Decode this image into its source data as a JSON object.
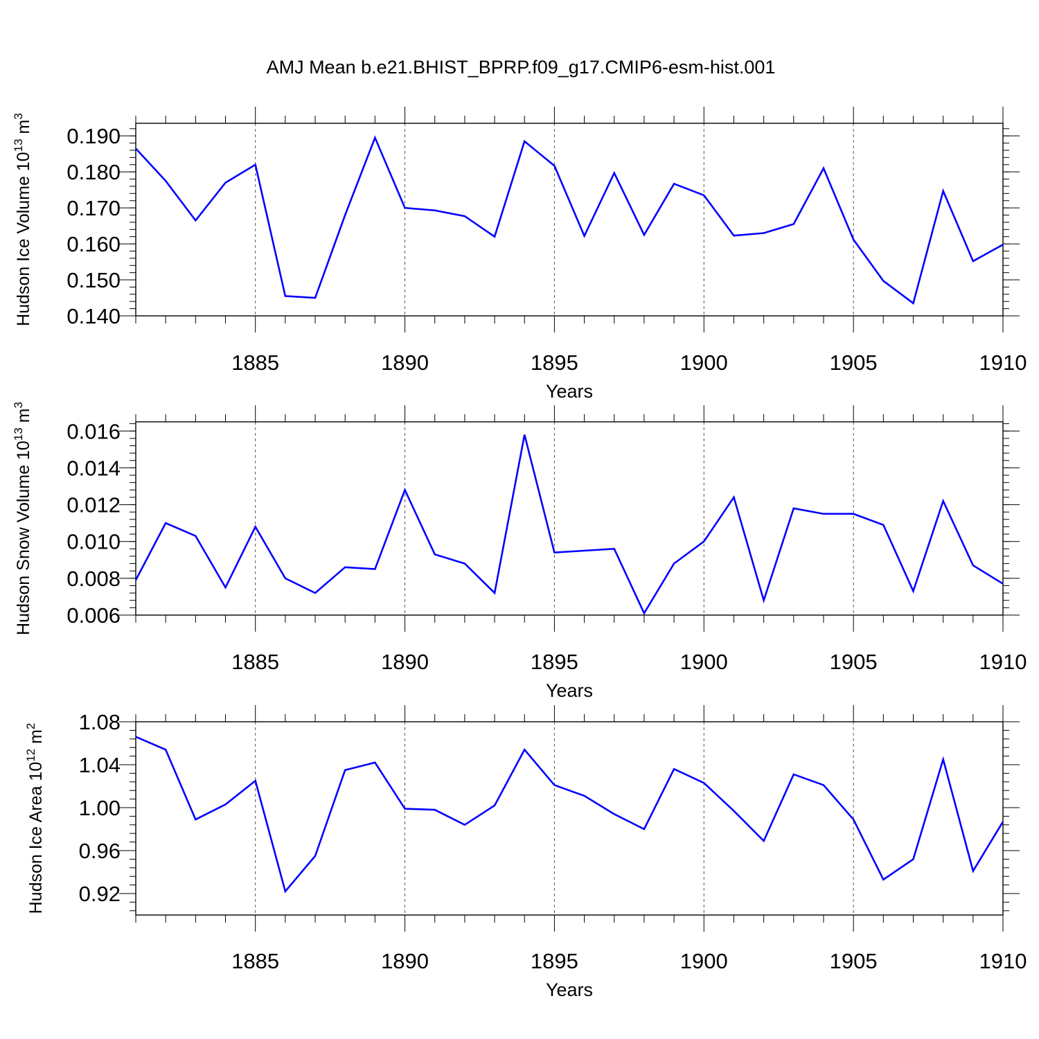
{
  "figure": {
    "title": "AMJ Mean b.e21.BHIST_BPRP.f09_g17.CMIP6-esm-hist.001",
    "line_color": "#0000ff"
  },
  "chart_data": [
    {
      "type": "line",
      "ylabel": "Hudson Ice Volume 10",
      "ylabel_exp": "13",
      "ylabel_unit": " m",
      "ylabel_unit_exp": "3",
      "xlabel": "Years",
      "xlim": [
        1881,
        1910
      ],
      "ylim": [
        0.14,
        0.1935
      ],
      "yticks": [
        "0.140",
        "0.150",
        "0.160",
        "0.170",
        "0.180",
        "0.190"
      ],
      "xticks": [
        "1885",
        "1890",
        "1895",
        "1900",
        "1905",
        "1910"
      ],
      "grid": "dashed vertical at 5-year ticks",
      "x": [
        1881,
        1882,
        1883,
        1884,
        1885,
        1886,
        1887,
        1888,
        1889,
        1890,
        1891,
        1892,
        1893,
        1894,
        1895,
        1896,
        1897,
        1898,
        1899,
        1900,
        1901,
        1902,
        1903,
        1904,
        1905,
        1906,
        1907,
        1908,
        1909,
        1910
      ],
      "values": [
        0.1865,
        0.1775,
        0.1665,
        0.177,
        0.182,
        0.1455,
        0.145,
        0.168,
        0.1895,
        0.17,
        0.1693,
        0.1677,
        0.162,
        0.1885,
        0.1817,
        0.1622,
        0.1797,
        0.1625,
        0.1767,
        0.1735,
        0.1623,
        0.163,
        0.1655,
        0.181,
        0.1612,
        0.1497,
        0.1435,
        0.1747,
        0.1552,
        0.1598
      ]
    },
    {
      "type": "line",
      "ylabel": "Hudson Snow Volume 10",
      "ylabel_exp": "13",
      "ylabel_unit": " m",
      "ylabel_unit_exp": "3",
      "xlabel": "Years",
      "xlim": [
        1881,
        1910
      ],
      "ylim": [
        0.006,
        0.0165
      ],
      "yticks": [
        "0.006",
        "0.008",
        "0.010",
        "0.012",
        "0.014",
        "0.016"
      ],
      "xticks": [
        "1885",
        "1890",
        "1895",
        "1900",
        "1905",
        "1910"
      ],
      "grid": "dashed vertical at 5-year ticks",
      "x": [
        1881,
        1882,
        1883,
        1884,
        1885,
        1886,
        1887,
        1888,
        1889,
        1890,
        1891,
        1892,
        1893,
        1894,
        1895,
        1896,
        1897,
        1898,
        1899,
        1900,
        1901,
        1902,
        1903,
        1904,
        1905,
        1906,
        1907,
        1908,
        1909,
        1910
      ],
      "values": [
        0.0079,
        0.011,
        0.0103,
        0.0075,
        0.0108,
        0.008,
        0.0072,
        0.0086,
        0.0085,
        0.0128,
        0.0093,
        0.0088,
        0.0072,
        0.0158,
        0.0094,
        0.0095,
        0.0096,
        0.0061,
        0.0088,
        0.01,
        0.0124,
        0.0068,
        0.0118,
        0.0115,
        0.0115,
        0.0109,
        0.0073,
        0.0122,
        0.0087,
        0.0077
      ]
    },
    {
      "type": "line",
      "ylabel": "Hudson Ice Area 10",
      "ylabel_exp": "12",
      "ylabel_unit": " m",
      "ylabel_unit_exp": "2",
      "xlabel": "Years",
      "xlim": [
        1881,
        1910
      ],
      "ylim": [
        0.9,
        1.08
      ],
      "yticks": [
        "0.92",
        "0.96",
        "1.00",
        "1.04",
        "1.08"
      ],
      "xticks": [
        "1885",
        "1890",
        "1895",
        "1900",
        "1905",
        "1910"
      ],
      "grid": "dashed vertical at 5-year ticks",
      "x": [
        1881,
        1882,
        1883,
        1884,
        1885,
        1886,
        1887,
        1888,
        1889,
        1890,
        1891,
        1892,
        1893,
        1894,
        1895,
        1896,
        1897,
        1898,
        1899,
        1900,
        1901,
        1902,
        1903,
        1904,
        1905,
        1906,
        1907,
        1908,
        1909,
        1910
      ],
      "values": [
        1.066,
        1.054,
        0.989,
        1.003,
        1.025,
        0.922,
        0.955,
        1.035,
        1.042,
        0.999,
        0.998,
        0.984,
        1.002,
        1.054,
        1.021,
        1.011,
        0.994,
        0.98,
        1.036,
        1.023,
        0.997,
        0.969,
        1.031,
        1.021,
        0.989,
        0.933,
        0.952,
        1.045,
        0.941,
        0.987
      ]
    }
  ]
}
